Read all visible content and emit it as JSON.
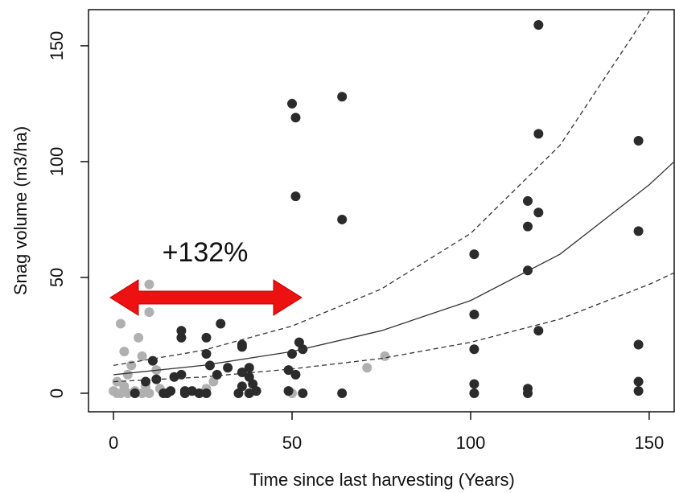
{
  "chart_data": {
    "type": "scatter",
    "xlabel": "Time since last harvesting (Years)",
    "ylabel": "Snag volume (m3/ha)",
    "annotation": "+132%",
    "annotation_color": "#ee1111",
    "xlim": [
      -7,
      157
    ],
    "ylim": [
      -8,
      165.6
    ],
    "xticks": [
      0,
      50,
      100,
      150
    ],
    "yticks": [
      0,
      50,
      100,
      150
    ],
    "series": [
      {
        "color": "#b0b0b0",
        "x": [
          2,
          10,
          10,
          7,
          3,
          8,
          5,
          12,
          4,
          1,
          0,
          2,
          4,
          6,
          8,
          10,
          1,
          3,
          71,
          76,
          50,
          28,
          26,
          13,
          9
        ],
        "values": [
          30,
          47,
          35,
          24,
          18,
          16,
          12,
          10,
          8,
          5,
          1,
          0,
          0,
          1,
          0,
          0,
          0,
          3,
          11,
          16,
          0,
          5,
          2,
          2,
          3
        ]
      },
      {
        "color": "#2b2b2b",
        "x": [
          50,
          51,
          64,
          51,
          64,
          119,
          119,
          147,
          116,
          119,
          116,
          147,
          101,
          116,
          101,
          119,
          147,
          101,
          147,
          147,
          116,
          116,
          101,
          101,
          52,
          53,
          50,
          51,
          49,
          49,
          53,
          64,
          30,
          36,
          36,
          19,
          19,
          26,
          26,
          27,
          29,
          32,
          38,
          36,
          38,
          39,
          36,
          40,
          35,
          38,
          26,
          24,
          22,
          20,
          16,
          14,
          12,
          11,
          9,
          17,
          19,
          15,
          6,
          20
        ],
        "values": [
          125,
          119,
          128,
          85,
          75,
          159,
          112,
          109,
          83,
          78,
          72,
          70,
          60,
          53,
          34,
          27,
          21,
          19,
          5,
          1,
          2,
          0,
          4,
          0,
          22,
          19,
          17,
          8,
          10,
          1,
          0,
          0,
          30,
          21,
          20,
          27,
          24,
          24,
          17,
          12,
          8,
          11,
          11,
          9,
          7,
          4,
          3,
          1,
          0,
          0,
          0,
          0,
          1,
          0,
          1,
          0,
          6,
          14,
          5,
          7,
          8,
          0,
          0,
          1
        ]
      }
    ],
    "lines": [
      {
        "style": "solid",
        "color": "#333333",
        "x": [
          0,
          25,
          50,
          75,
          100,
          125,
          150,
          157
        ],
        "values": [
          8,
          12,
          18,
          27,
          40,
          60,
          90,
          100
        ]
      },
      {
        "style": "dashed",
        "color": "#333333",
        "x": [
          0,
          25,
          50,
          75,
          100,
          125,
          150
        ],
        "values": [
          12,
          18.5,
          29,
          45,
          69,
          107,
          165
        ]
      },
      {
        "style": "dashed",
        "color": "#333333",
        "x": [
          0,
          25,
          50,
          75,
          100,
          125,
          150,
          157
        ],
        "values": [
          5,
          7,
          10.5,
          15,
          22,
          32,
          47,
          52
        ]
      }
    ]
  }
}
